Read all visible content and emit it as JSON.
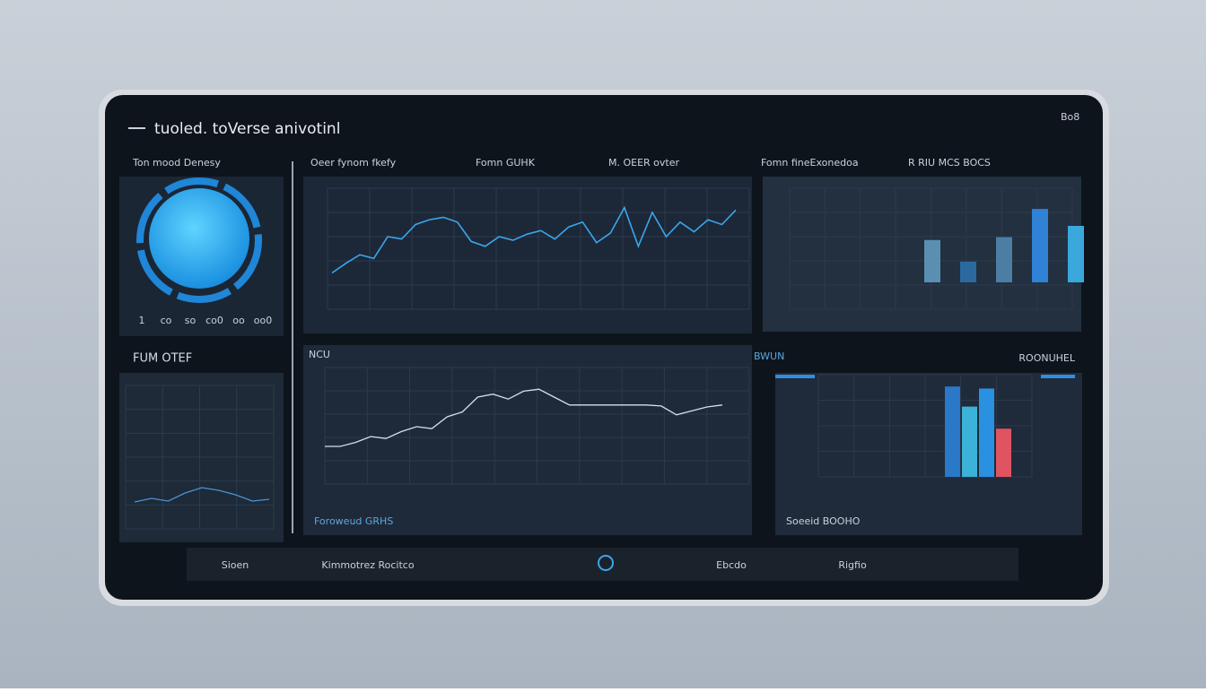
{
  "header": {
    "title": "tuoled. toVerse anivotinl",
    "status": "Bo8"
  },
  "left_top": {
    "title": "Ton mood Denesy",
    "labels": [
      "1",
      "co",
      "so",
      "co0",
      "oo",
      "oo0"
    ]
  },
  "mid_top": {
    "headings": [
      "Oeer fynom fkefy",
      "Fomn GUHK",
      "M. OEER ovter"
    ],
    "chart": {
      "ylim": [
        0,
        100
      ],
      "color": "#3aa6ec",
      "values": [
        30,
        38,
        45,
        42,
        60,
        58,
        70,
        74,
        76,
        72,
        56,
        52,
        60,
        57,
        62,
        65,
        58,
        68,
        72,
        55,
        63,
        84,
        52,
        80,
        60,
        72,
        64,
        74,
        70,
        82
      ]
    }
  },
  "right_top": {
    "headings": [
      "Fomn fineExonedoa",
      "R RIU MCS BOCS"
    ],
    "chart": {
      "ylim": [
        0,
        100
      ],
      "values": [
        45,
        22,
        48,
        78,
        60
      ],
      "colors": [
        "#5b8fb2",
        "#2a6aa0",
        "#4c7ea4",
        "#2f82d6",
        "#3aa8dc"
      ]
    }
  },
  "left_bottom": {
    "title": "FUM OTEF",
    "chart": {
      "ylim": [
        0,
        100
      ],
      "color": "#4a92d6",
      "values": [
        30,
        34,
        31,
        40,
        46,
        43,
        38,
        31,
        33
      ]
    }
  },
  "mid_bottom": {
    "title": "NCU",
    "caption": "Foroweud GRHS",
    "chart": {
      "ylim": [
        0,
        100
      ],
      "color": "#d8dee8",
      "values": [
        20,
        20,
        24,
        30,
        28,
        35,
        40,
        38,
        50,
        55,
        70,
        73,
        68,
        76,
        78,
        70,
        62,
        62,
        62,
        62,
        62,
        62,
        61,
        52,
        56,
        60,
        62
      ]
    }
  },
  "right_bottom": {
    "title": "BWUN",
    "side": "ROONUHEL",
    "caption": "Soeeid BOOHO",
    "chart": {
      "ylim": [
        0,
        100
      ],
      "values": [
        90,
        70,
        88,
        48
      ],
      "colors": [
        "#2a78c8",
        "#3cb2d8",
        "#2a90e0",
        "#e05462"
      ]
    }
  },
  "footer": {
    "items": [
      "Sioen",
      "Kimmotrez Rocitco",
      "Ebcdo",
      "Rigfio"
    ]
  }
}
